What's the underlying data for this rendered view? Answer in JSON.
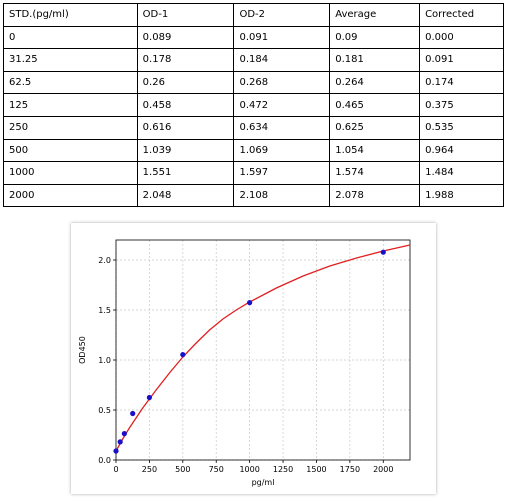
{
  "table": {
    "headers": [
      "STD.(pg/ml)",
      "OD-1",
      "OD-2",
      "Average",
      "Corrected"
    ],
    "rows": [
      [
        "0",
        "0.089",
        "0.091",
        "0.09",
        "0.000"
      ],
      [
        "31.25",
        "0.178",
        "0.184",
        "0.181",
        "0.091"
      ],
      [
        "62.5",
        "0.26",
        "0.268",
        "0.264",
        "0.174"
      ],
      [
        "125",
        "0.458",
        "0.472",
        "0.465",
        "0.375"
      ],
      [
        "250",
        "0.616",
        "0.634",
        "0.625",
        "0.535"
      ],
      [
        "500",
        "1.039",
        "1.069",
        "1.054",
        "0.964"
      ],
      [
        "1000",
        "1.551",
        "1.597",
        "1.574",
        "1.484"
      ],
      [
        "2000",
        "2.048",
        "2.108",
        "2.078",
        "1.988"
      ]
    ]
  },
  "chart_data": {
    "type": "scatter",
    "title": "",
    "xlabel": "pg/ml",
    "ylabel": "OD450",
    "xlim": [
      0,
      2200
    ],
    "ylim": [
      0,
      2.2
    ],
    "grid": true,
    "x_ticks": [
      "0",
      "250",
      "500",
      "750",
      "1000",
      "1250",
      "1500",
      "1750",
      "2000"
    ],
    "y_ticks": [
      "0.0",
      "0.5",
      "1.0",
      "1.5",
      "2.0"
    ],
    "x_tick_values": [
      0,
      250,
      500,
      750,
      1000,
      1250,
      1500,
      1750,
      2000
    ],
    "y_tick_values": [
      0,
      0.5,
      1.0,
      1.5,
      2.0
    ],
    "points": {
      "x": [
        0,
        31.25,
        62.5,
        125,
        250,
        500,
        1000,
        2000
      ],
      "y": [
        0.09,
        0.181,
        0.264,
        0.465,
        0.625,
        1.054,
        1.574,
        2.078
      ]
    },
    "fit_curve": {
      "x": [
        0,
        50,
        100,
        200,
        300,
        400,
        500,
        600,
        700,
        800,
        900,
        1000,
        1200,
        1400,
        1600,
        1800,
        2000,
        2200
      ],
      "y": [
        0.09,
        0.21,
        0.32,
        0.52,
        0.7,
        0.87,
        1.03,
        1.17,
        1.3,
        1.41,
        1.5,
        1.58,
        1.72,
        1.84,
        1.94,
        2.02,
        2.09,
        2.15
      ]
    },
    "point_color": "#1a10c8",
    "curve_color": "#e02020"
  }
}
